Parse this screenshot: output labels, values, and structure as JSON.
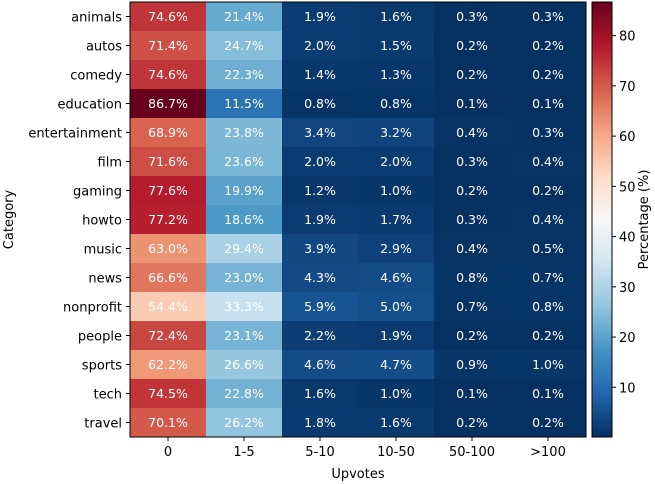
{
  "chart_data": {
    "type": "heatmap",
    "xlabel": "Upvotes",
    "ylabel": "Category",
    "colorbar_label": "Percentage (%)",
    "colorbar_ticks": [
      10,
      20,
      30,
      40,
      50,
      60,
      70,
      80
    ],
    "color_range": [
      0.1,
      86.7
    ],
    "colormap": "RdBu_r",
    "x_categories": [
      "0",
      "1-5",
      "5-10",
      "10-50",
      "50-100",
      ">100"
    ],
    "y_categories": [
      "animals",
      "autos",
      "comedy",
      "education",
      "entertainment",
      "film",
      "gaming",
      "howto",
      "music",
      "news",
      "nonprofit",
      "people",
      "sports",
      "tech",
      "travel"
    ],
    "values": [
      [
        74.6,
        21.4,
        1.9,
        1.6,
        0.3,
        0.3
      ],
      [
        71.4,
        24.7,
        2.0,
        1.5,
        0.2,
        0.2
      ],
      [
        74.6,
        22.3,
        1.4,
        1.3,
        0.2,
        0.2
      ],
      [
        86.7,
        11.5,
        0.8,
        0.8,
        0.1,
        0.1
      ],
      [
        68.9,
        23.8,
        3.4,
        3.2,
        0.4,
        0.3
      ],
      [
        71.6,
        23.6,
        2.0,
        2.0,
        0.3,
        0.4
      ],
      [
        77.6,
        19.9,
        1.2,
        1.0,
        0.2,
        0.2
      ],
      [
        77.2,
        18.6,
        1.9,
        1.7,
        0.3,
        0.4
      ],
      [
        63.0,
        29.4,
        3.9,
        2.9,
        0.4,
        0.5
      ],
      [
        66.6,
        23.0,
        4.3,
        4.6,
        0.8,
        0.7
      ],
      [
        54.4,
        33.3,
        5.9,
        5.0,
        0.7,
        0.8
      ],
      [
        72.4,
        23.1,
        2.2,
        1.9,
        0.2,
        0.2
      ],
      [
        62.2,
        26.6,
        4.6,
        4.7,
        0.9,
        1.0
      ],
      [
        74.5,
        22.8,
        1.6,
        1.0,
        0.1,
        0.1
      ],
      [
        70.1,
        26.2,
        1.8,
        1.6,
        0.2,
        0.2
      ]
    ],
    "value_format": "percent-1dp",
    "grid": false,
    "legend": "colorbar-right"
  }
}
